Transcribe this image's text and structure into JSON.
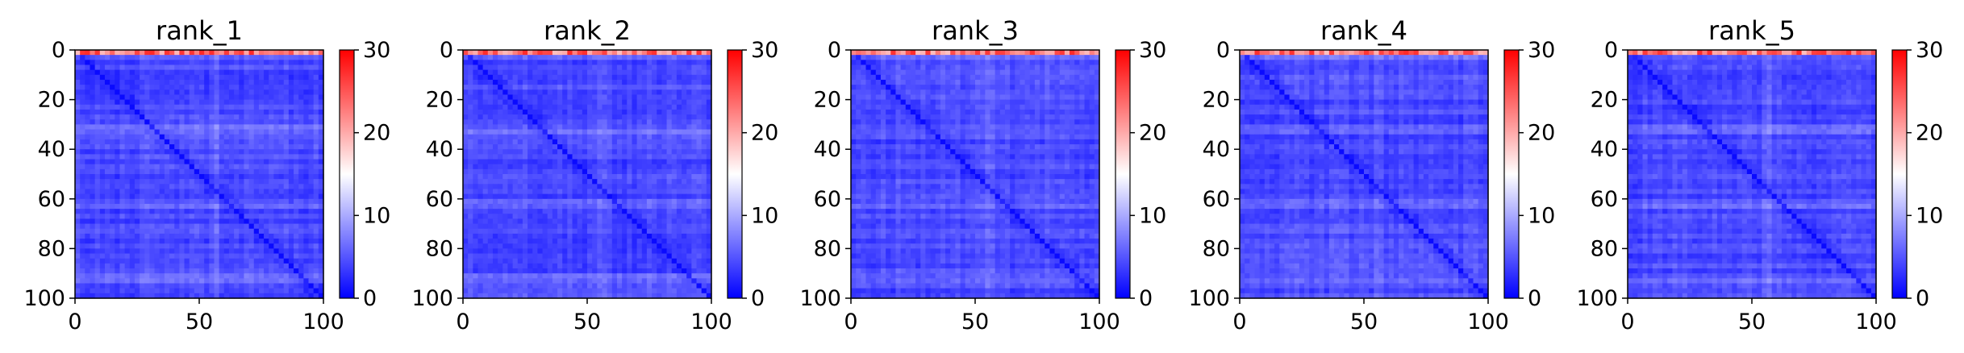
{
  "chart_data": [
    {
      "type": "heatmap",
      "title": "rank_1",
      "x_ticks": [
        0,
        50,
        100
      ],
      "y_ticks": [
        0,
        20,
        40,
        60,
        80,
        100
      ],
      "xlim": [
        0,
        100
      ],
      "ylim": [
        100,
        0
      ],
      "colorbar": {
        "ticks": [
          0,
          10,
          20,
          30
        ],
        "range": [
          0,
          30
        ],
        "colormap": "bwr"
      },
      "grid": false
    },
    {
      "type": "heatmap",
      "title": "rank_2",
      "x_ticks": [
        0,
        50,
        100
      ],
      "y_ticks": [
        0,
        20,
        40,
        60,
        80,
        100
      ],
      "xlim": [
        0,
        100
      ],
      "ylim": [
        100,
        0
      ],
      "colorbar": {
        "ticks": [
          0,
          10,
          20,
          30
        ],
        "range": [
          0,
          30
        ],
        "colormap": "bwr"
      },
      "grid": false
    },
    {
      "type": "heatmap",
      "title": "rank_3",
      "x_ticks": [
        0,
        50,
        100
      ],
      "y_ticks": [
        0,
        20,
        40,
        60,
        80,
        100
      ],
      "xlim": [
        0,
        100
      ],
      "ylim": [
        100,
        0
      ],
      "colorbar": {
        "ticks": [
          0,
          10,
          20,
          30
        ],
        "range": [
          0,
          30
        ],
        "colormap": "bwr"
      },
      "grid": false
    },
    {
      "type": "heatmap",
      "title": "rank_4",
      "x_ticks": [
        0,
        50,
        100
      ],
      "y_ticks": [
        0,
        20,
        40,
        60,
        80,
        100
      ],
      "xlim": [
        0,
        100
      ],
      "ylim": [
        100,
        0
      ],
      "colorbar": {
        "ticks": [
          0,
          10,
          20,
          30
        ],
        "range": [
          0,
          30
        ],
        "colormap": "bwr"
      },
      "grid": false
    },
    {
      "type": "heatmap",
      "title": "rank_5",
      "x_ticks": [
        0,
        50,
        100
      ],
      "y_ticks": [
        0,
        20,
        40,
        60,
        80,
        100
      ],
      "xlim": [
        0,
        100
      ],
      "ylim": [
        100,
        0
      ],
      "colorbar": {
        "ticks": [
          0,
          10,
          20,
          30
        ],
        "range": [
          0,
          30
        ],
        "colormap": "bwr"
      },
      "grid": false
    }
  ],
  "colors": {
    "low": "#0000ff",
    "mid": "#ffffff",
    "high": "#ff0000",
    "axis": "#000000"
  }
}
